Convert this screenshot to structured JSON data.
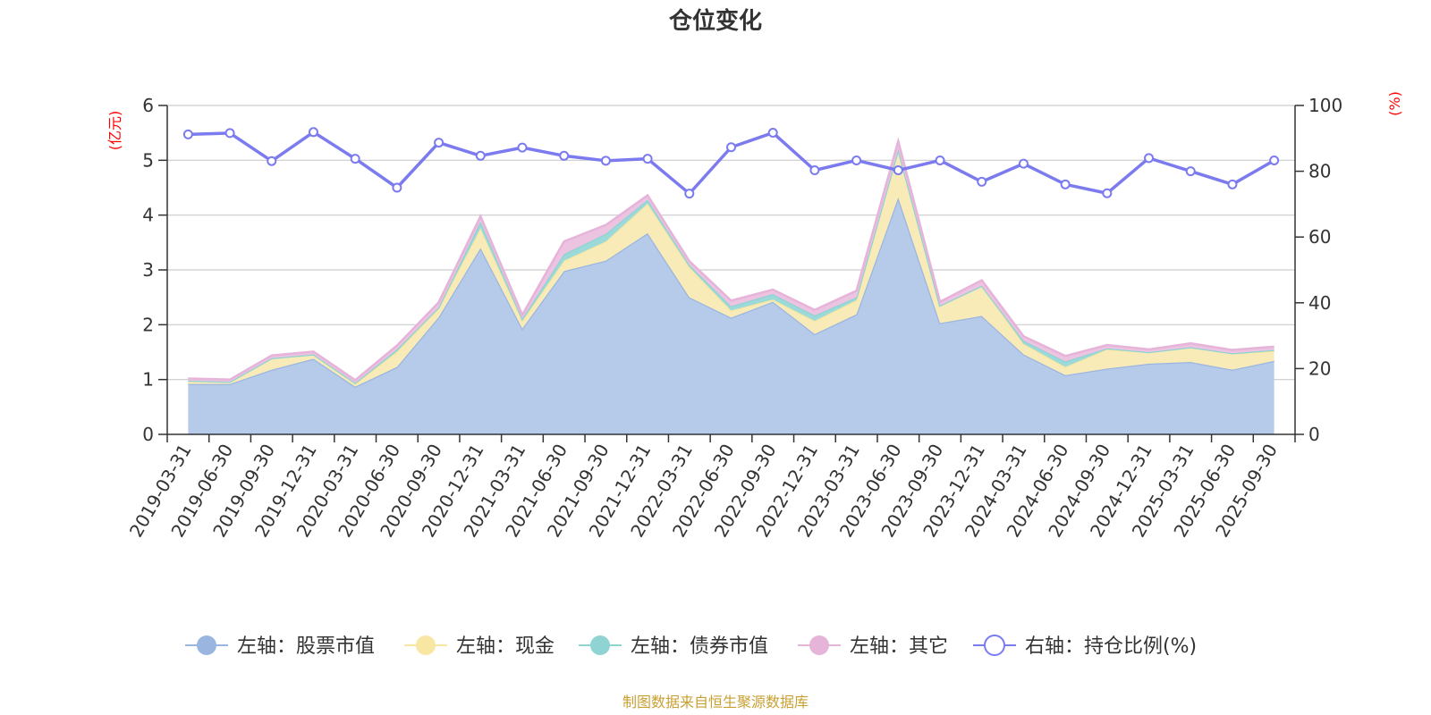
{
  "chart_data": {
    "type": "area",
    "title": "仓位变化",
    "left_axis_unit": "(亿元)",
    "right_axis_unit": "(%)",
    "left_ylim": [
      0,
      6
    ],
    "left_ticks": [
      "0",
      "1",
      "2",
      "3",
      "4",
      "5",
      "6"
    ],
    "right_ylim": [
      0,
      100
    ],
    "right_ticks": [
      "0",
      "20",
      "40",
      "60",
      "80",
      "100"
    ],
    "grid": true,
    "legend_position": "bottom",
    "categories": [
      "2019-03-31",
      "2019-06-30",
      "2019-09-30",
      "2019-12-31",
      "2020-03-31",
      "2020-06-30",
      "2020-09-30",
      "2020-12-31",
      "2021-03-31",
      "2021-06-30",
      "2021-09-30",
      "2021-12-31",
      "2022-03-31",
      "2022-06-30",
      "2022-09-30",
      "2022-12-31",
      "2023-03-31",
      "2023-06-30",
      "2023-09-30",
      "2023-12-31",
      "2024-03-31",
      "2024-06-30",
      "2024-09-30",
      "2024-12-31",
      "2025-03-31",
      "2025-06-30",
      "2025-09-30"
    ],
    "series": [
      {
        "name": "左轴：股票市值",
        "axis": "left",
        "stack": true,
        "color": "#9ab6e0",
        "fill": "#b6cbea",
        "values": [
          0.92,
          0.92,
          1.18,
          1.38,
          0.87,
          1.23,
          2.14,
          3.4,
          1.93,
          2.98,
          3.17,
          3.67,
          2.5,
          2.13,
          2.42,
          1.83,
          2.19,
          4.32,
          2.03,
          2.16,
          1.46,
          1.08,
          1.2,
          1.29,
          1.32,
          1.18,
          1.34
        ]
      },
      {
        "name": "左轴：现金",
        "axis": "left",
        "stack": true,
        "color": "#f7e7a3",
        "fill": "#f8ebb8",
        "values": [
          0.06,
          0.04,
          0.21,
          0.08,
          0.05,
          0.28,
          0.16,
          0.36,
          0.14,
          0.19,
          0.35,
          0.54,
          0.55,
          0.13,
          0.04,
          0.24,
          0.26,
          0.88,
          0.32,
          0.55,
          0.19,
          0.15,
          0.35,
          0.21,
          0.27,
          0.3,
          0.18
        ]
      },
      {
        "name": "左轴：债券市值",
        "axis": "left",
        "stack": true,
        "color": "#8fd3d3",
        "fill": "#9cd9d9",
        "values": [
          0.0,
          0.0,
          0.0,
          0.0,
          0.02,
          0.04,
          0.02,
          0.12,
          0.04,
          0.12,
          0.14,
          0.07,
          0.04,
          0.08,
          0.1,
          0.1,
          0.05,
          0.0,
          0.0,
          0.0,
          0.06,
          0.1,
          0.02,
          0.0,
          0.0,
          0.0,
          0.02
        ]
      },
      {
        "name": "左轴：其它",
        "axis": "left",
        "stack": true,
        "color": "#e6b3d9",
        "fill": "#ecc3e1",
        "values": [
          0.04,
          0.04,
          0.05,
          0.05,
          0.05,
          0.07,
          0.09,
          0.1,
          0.07,
          0.23,
          0.16,
          0.08,
          0.07,
          0.1,
          0.08,
          0.1,
          0.12,
          0.15,
          0.07,
          0.1,
          0.08,
          0.1,
          0.06,
          0.05,
          0.07,
          0.06,
          0.06
        ]
      },
      {
        "name": "右轴：持仓比例(%)",
        "axis": "right",
        "stack": false,
        "color": "#7b7bef",
        "values": [
          91.2,
          91.6,
          83.1,
          91.9,
          83.8,
          75.0,
          88.7,
          84.7,
          87.2,
          84.7,
          83.2,
          83.8,
          73.2,
          87.3,
          91.7,
          80.3,
          83.3,
          80.3,
          83.3,
          76.8,
          82.3,
          76.0,
          73.3,
          84.0,
          80.0,
          76.0,
          83.3
        ]
      }
    ],
    "legend": [
      "左轴：股票市值",
      "左轴：现金",
      "左轴：债券市值",
      "左轴：其它",
      "右轴：持仓比例(%)"
    ],
    "source_text": "制图数据来自恒生聚源数据库",
    "colors": {
      "axis_unit": "#ff0000",
      "source": "#c8a032",
      "axis": "#333333",
      "grid": "#cccccc"
    }
  }
}
